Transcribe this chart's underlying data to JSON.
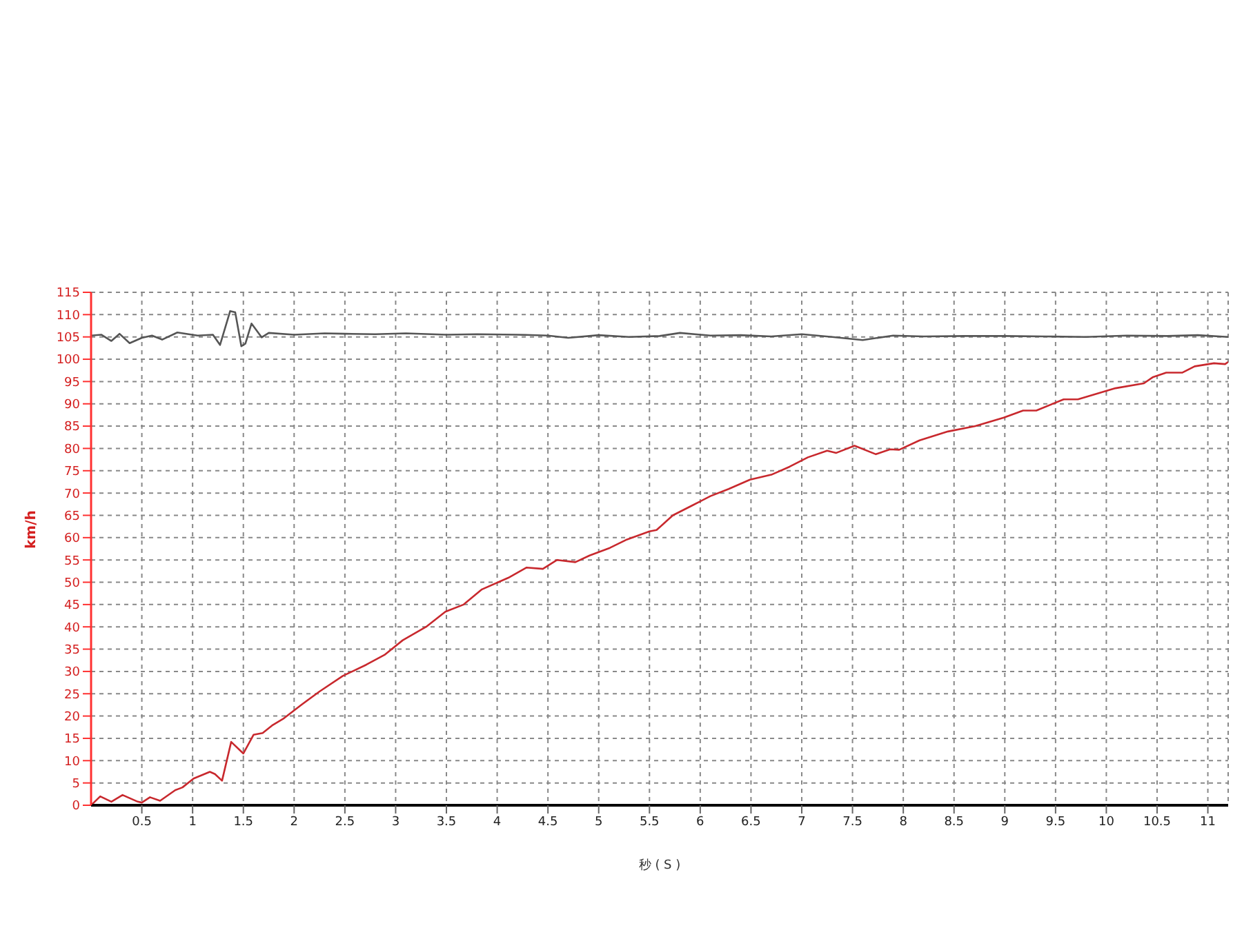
{
  "chart_data": {
    "type": "line",
    "xlabel": "秒 ( S )",
    "ylabel": "km/h",
    "xlim": [
      0,
      11.2
    ],
    "xticks": [
      0.5,
      1,
      1.5,
      2,
      2.5,
      3,
      3.5,
      4,
      4.5,
      5,
      5.5,
      6,
      6.5,
      7,
      7.5,
      8,
      8.5,
      9,
      9.5,
      10,
      10.5,
      11
    ],
    "ylim": [
      0,
      115
    ],
    "yticks": [
      0,
      5,
      10,
      15,
      20,
      25,
      30,
      35,
      40,
      45,
      50,
      55,
      60,
      65,
      70,
      75,
      80,
      85,
      90,
      95,
      100,
      105,
      110,
      115
    ],
    "grid": true,
    "marker": "none",
    "line_style": "solid",
    "series": [
      {
        "color": "#555555",
        "x": [
          0,
          0.1,
          0.2,
          0.28,
          0.38,
          0.5,
          0.6,
          0.7,
          0.85,
          1.05,
          1.2,
          1.27,
          1.37,
          1.42,
          1.48,
          1.52,
          1.58,
          1.68,
          1.75,
          2,
          2.3,
          2.5,
          2.8,
          3.1,
          3.5,
          3.8,
          4.2,
          4.5,
          4.7,
          5,
          5.3,
          5.6,
          5.8,
          6.1,
          6.4,
          6.7,
          7,
          7.3,
          7.6,
          7.9,
          8.2,
          8.6,
          9,
          9.4,
          9.8,
          10.2,
          10.6,
          10.9,
          11.2
        ],
        "values": [
          105.3,
          105.5,
          104.1,
          105.7,
          103.6,
          104.8,
          105.3,
          104.4,
          106,
          105.3,
          105.5,
          103.2,
          110.8,
          110.5,
          102.9,
          103.5,
          108,
          104.9,
          105.9,
          105.5,
          105.8,
          105.7,
          105.6,
          105.8,
          105.5,
          105.6,
          105.5,
          105.3,
          104.8,
          105.4,
          105,
          105.2,
          105.9,
          105.3,
          105.4,
          105.1,
          105.6,
          105,
          104.3,
          105.3,
          105.1,
          105.2,
          105.2,
          105.1,
          105,
          105.3,
          105.2,
          105.4,
          105
        ]
      },
      {
        "color": "#c8282d",
        "x": [
          0,
          0.09,
          0.2,
          0.31,
          0.46,
          0.5,
          0.58,
          0.68,
          0.83,
          0.9,
          1.01,
          1.17,
          1.22,
          1.29,
          1.38,
          1.5,
          1.6,
          1.69,
          1.79,
          1.9,
          2.07,
          2.25,
          2.48,
          2.71,
          2.89,
          3.07,
          3.3,
          3.49,
          3.67,
          3.85,
          4.11,
          4.29,
          4.45,
          4.59,
          4.77,
          4.91,
          5.11,
          5.28,
          5.5,
          5.57,
          5.73,
          5.92,
          6.1,
          6.28,
          6.49,
          6.7,
          6.88,
          7.06,
          7.25,
          7.34,
          7.52,
          7.73,
          7.87,
          7.96,
          8.16,
          8.44,
          8.71,
          8.99,
          9.18,
          9.31,
          9.58,
          9.72,
          10.09,
          10.37,
          10.46,
          10.59,
          10.75,
          10.87,
          11.06,
          11.17,
          11.2
        ],
        "values": [
          0,
          2,
          0.8,
          2.3,
          0.8,
          0.6,
          1.8,
          1,
          3.4,
          4,
          6,
          7.5,
          7,
          5.5,
          14.2,
          11.6,
          15.8,
          16.2,
          18,
          19.5,
          22.5,
          25.5,
          29,
          31.5,
          33.7,
          37,
          40,
          43.4,
          45,
          48.4,
          51,
          53.3,
          53,
          55,
          54.5,
          56,
          57.7,
          59.6,
          61.4,
          61.7,
          65,
          67.2,
          69.3,
          70.9,
          73,
          74.1,
          75.9,
          78,
          79.5,
          79,
          80.6,
          78.7,
          79.8,
          79.7,
          81.8,
          83.8,
          85,
          86.9,
          88.5,
          88.5,
          91,
          91,
          93.5,
          94.6,
          96,
          97,
          97,
          98.4,
          99.1,
          98.9,
          99.4
        ]
      }
    ]
  }
}
